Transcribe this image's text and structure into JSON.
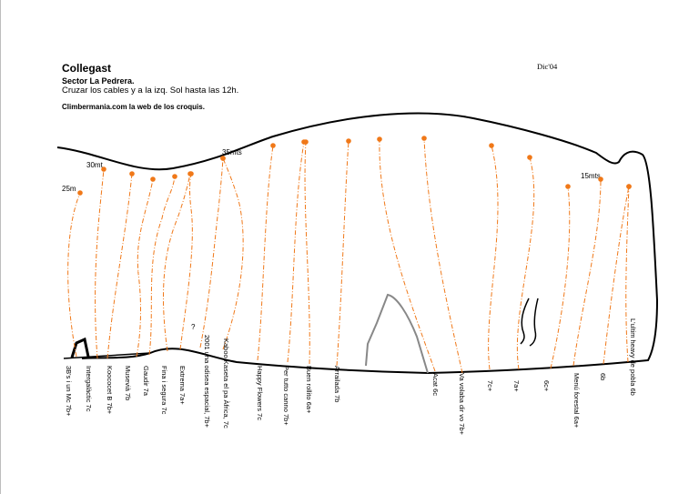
{
  "header": {
    "title": "Collegast",
    "sector": "Sector La Pedrera.",
    "note": "Cruzar los cables y a la izq. Sol hasta las 12h.",
    "credit": "Climbermania.com la web de los croquis.",
    "date": "Dic'04"
  },
  "colors": {
    "route": "#f07818",
    "outline": "#000000",
    "feature": "#888888"
  },
  "heights": {
    "h25": "25m",
    "h30": "30mt",
    "h35": "35mts",
    "h15": "15mts"
  },
  "question_mark": "?",
  "routes": [
    {
      "label": "3B's i un Mc 7b+"
    },
    {
      "label": "Intergalàctic 7c"
    },
    {
      "label": "Koococet B 7b+"
    },
    {
      "label": "Musevià 7b"
    },
    {
      "label": "Gaudir 7a"
    },
    {
      "label": "Fina i segura 7c"
    },
    {
      "label": "Extrema 7a+"
    },
    {
      "label": "2001 una odisea espacial, 7b+"
    },
    {
      "label": "Kaboo Kaseta el pa Àfrica, 7c"
    },
    {
      "label": "Happy Flowers 7c"
    },
    {
      "label": "Per tutto canno 7b+"
    },
    {
      "label": "Buen rollito 6a+"
    },
    {
      "label": "Arrailada 7b"
    },
    {
      "label": "Acat 6c"
    },
    {
      "label": "Va volaba dir vo 7b+"
    },
    {
      "label": "7c+"
    },
    {
      "label": "7a+"
    },
    {
      "label": "6c+"
    },
    {
      "label": "Menú forestal 6a+"
    },
    {
      "label": "6b"
    },
    {
      "label": "L'ultim heavy de pobla 6b"
    }
  ]
}
